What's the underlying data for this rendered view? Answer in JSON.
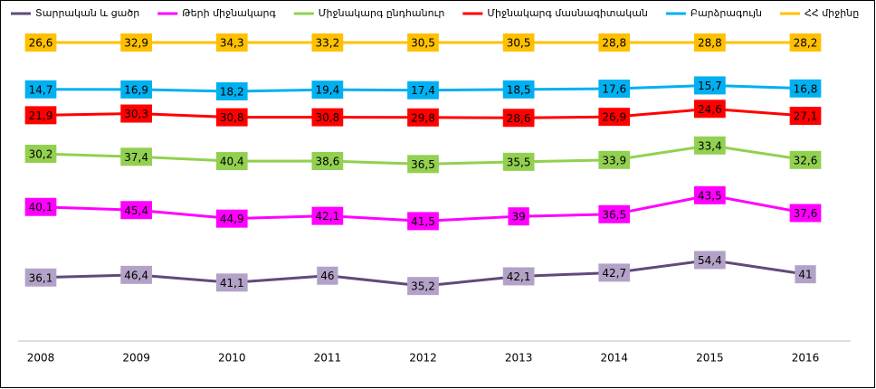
{
  "chart_data": {
    "type": "line",
    "stacking": "percent",
    "categories": [
      "2008",
      "2009",
      "2010",
      "2011",
      "2012",
      "2013",
      "2014",
      "2015",
      "2016"
    ],
    "ylim": [
      0,
      100
    ],
    "series": [
      {
        "name": "Տարրական և ցածր",
        "color": "#604a7b",
        "label_color": "#b3a2c7",
        "values": [
          36.1,
          46.4,
          41.1,
          46,
          35.2,
          42.1,
          42.7,
          54.4,
          41
        ],
        "value_labels": [
          "36,1",
          "46,4",
          "41,1",
          "46",
          "35,2",
          "42,1",
          "42,7",
          "54,4",
          "41"
        ]
      },
      {
        "name": "Թերի միջնակարգ",
        "color": "#ff00ff",
        "label_color": "#ff00ff",
        "values": [
          40.1,
          45.4,
          44.9,
          42.1,
          41.5,
          39,
          36.5,
          43.5,
          37.6
        ],
        "value_labels": [
          "40,1",
          "45,4",
          "44,9",
          "42,1",
          "41,5",
          "39",
          "36,5",
          "43,5",
          "37,6"
        ]
      },
      {
        "name": "Միջնակարգ ընդհանուր",
        "color": "#92d050",
        "label_color": "#92d050",
        "values": [
          30.2,
          37.4,
          40.4,
          38.6,
          36.5,
          35.5,
          33.9,
          33.4,
          32.6
        ],
        "value_labels": [
          "30,2",
          "37,4",
          "40,4",
          "38,6",
          "36,5",
          "35,5",
          "33,9",
          "33,4",
          "32,6"
        ]
      },
      {
        "name": "Միջնակարգ մասնագիտական",
        "color": "#ff0000",
        "label_color": "#ff0000",
        "values": [
          21.9,
          30.3,
          30.8,
          30.8,
          29.8,
          28.6,
          26.9,
          24.6,
          27.1
        ],
        "value_labels": [
          "21,9",
          "30,3",
          "30,8",
          "30,8",
          "29,8",
          "28,6",
          "26,9",
          "24,6",
          "27,1"
        ]
      },
      {
        "name": "Բարձրագույն",
        "color": "#00b0f0",
        "label_color": "#00b0f0",
        "values": [
          14.7,
          16.9,
          18.2,
          19.4,
          17.4,
          18.5,
          17.6,
          15.7,
          16.8
        ],
        "value_labels": [
          "14,7",
          "16,9",
          "18,2",
          "19,4",
          "17,4",
          "18,5",
          "17,6",
          "15,7",
          "16,8"
        ]
      },
      {
        "name": "ՀՀ միջինը",
        "color": "#ffc000",
        "label_color": "#ffc000",
        "values": [
          26.6,
          32.9,
          34.3,
          33.2,
          30.5,
          30.5,
          28.8,
          28.8,
          28.2
        ],
        "value_labels": [
          "26,6",
          "32,9",
          "34,3",
          "33,2",
          "30,5",
          "30,5",
          "28,8",
          "28,8",
          "28,2"
        ]
      }
    ]
  }
}
